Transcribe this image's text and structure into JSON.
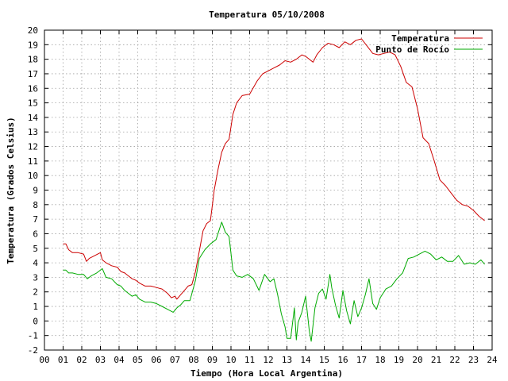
{
  "chart_data": {
    "type": "line",
    "title": "Temperatura 05/10/2008",
    "xlabel": "Tiempo (Hora Local Argentina)",
    "ylabel": "Temperatura (Grados Celsius)",
    "xlim": [
      0,
      24
    ],
    "ylim": [
      -2,
      20
    ],
    "x_ticks": [
      "00",
      "01",
      "02",
      "03",
      "04",
      "05",
      "06",
      "07",
      "08",
      "09",
      "10",
      "11",
      "12",
      "13",
      "14",
      "15",
      "16",
      "17",
      "18",
      "19",
      "20",
      "21",
      "22",
      "23",
      "24"
    ],
    "y_ticks": [
      "-2",
      "-1",
      "0",
      "1",
      "2",
      "3",
      "4",
      "5",
      "6",
      "7",
      "8",
      "9",
      "10",
      "11",
      "12",
      "13",
      "14",
      "15",
      "16",
      "17",
      "18",
      "19",
      "20"
    ],
    "grid": true,
    "legend_position": "top-right",
    "series": [
      {
        "name": "Temperatura",
        "color": "#cc0000",
        "x": [
          1.0,
          1.15,
          1.3,
          1.5,
          1.8,
          2.1,
          2.25,
          2.4,
          2.7,
          3.0,
          3.1,
          3.3,
          3.6,
          3.9,
          4.1,
          4.3,
          4.5,
          4.7,
          4.9,
          5.1,
          5.4,
          5.7,
          6.0,
          6.3,
          6.6,
          6.8,
          7.0,
          7.1,
          7.3,
          7.5,
          7.7,
          7.9,
          8.1,
          8.3,
          8.5,
          8.7,
          8.9,
          9.1,
          9.3,
          9.5,
          9.7,
          9.9,
          10.1,
          10.3,
          10.6,
          11.0,
          11.4,
          11.7,
          12.0,
          12.3,
          12.6,
          12.9,
          13.2,
          13.5,
          13.8,
          14.0,
          14.2,
          14.4,
          14.6,
          14.9,
          15.2,
          15.5,
          15.8,
          16.1,
          16.4,
          16.7,
          17.0,
          17.3,
          17.6,
          17.9,
          18.2,
          18.5,
          18.8,
          19.1,
          19.4,
          19.7,
          20.0,
          20.3,
          20.6,
          20.9,
          21.2,
          21.5,
          21.8,
          22.1,
          22.4,
          22.7,
          23.0,
          23.3,
          23.6
        ],
        "values": [
          5.3,
          5.3,
          4.9,
          4.7,
          4.7,
          4.6,
          4.1,
          4.3,
          4.5,
          4.7,
          4.2,
          4.0,
          3.8,
          3.7,
          3.4,
          3.3,
          3.1,
          2.9,
          2.8,
          2.6,
          2.4,
          2.4,
          2.3,
          2.2,
          1.9,
          1.6,
          1.7,
          1.5,
          1.8,
          2.1,
          2.4,
          2.5,
          3.4,
          4.8,
          6.2,
          6.7,
          6.9,
          9.0,
          10.4,
          11.6,
          12.2,
          12.5,
          14.2,
          15.0,
          15.5,
          15.6,
          16.5,
          17.0,
          17.2,
          17.4,
          17.6,
          17.9,
          17.8,
          18.0,
          18.3,
          18.2,
          18.0,
          17.8,
          18.3,
          18.8,
          19.1,
          19.0,
          18.8,
          19.2,
          19.0,
          19.3,
          19.4,
          18.9,
          18.4,
          18.3,
          18.4,
          18.5,
          18.3,
          17.5,
          16.4,
          16.1,
          14.6,
          12.6,
          12.2,
          11.0,
          9.7,
          9.3,
          8.8,
          8.3,
          8.0,
          7.9,
          7.6,
          7.2,
          6.9
        ]
      },
      {
        "name": "Punto de Rocío",
        "color": "#00aa00",
        "x": [
          1.0,
          1.15,
          1.3,
          1.5,
          1.8,
          2.1,
          2.3,
          2.5,
          2.8,
          3.1,
          3.3,
          3.6,
          3.9,
          4.1,
          4.3,
          4.5,
          4.7,
          4.9,
          5.1,
          5.4,
          5.7,
          6.0,
          6.3,
          6.6,
          6.9,
          7.1,
          7.3,
          7.5,
          7.8,
          8.1,
          8.3,
          8.6,
          8.9,
          9.2,
          9.5,
          9.7,
          9.9,
          10.1,
          10.3,
          10.6,
          10.9,
          11.2,
          11.5,
          11.8,
          12.1,
          12.3,
          12.5,
          12.7,
          12.9,
          13.0,
          13.2,
          13.4,
          13.5,
          13.6,
          13.8,
          14.0,
          14.2,
          14.3,
          14.5,
          14.7,
          14.9,
          15.1,
          15.3,
          15.4,
          15.6,
          15.8,
          16.0,
          16.2,
          16.4,
          16.6,
          16.8,
          17.0,
          17.2,
          17.4,
          17.6,
          17.8,
          18.0,
          18.3,
          18.6,
          18.9,
          19.2,
          19.5,
          19.8,
          20.1,
          20.4,
          20.7,
          21.0,
          21.3,
          21.6,
          21.9,
          22.2,
          22.5,
          22.8,
          23.1,
          23.4,
          23.6
        ],
        "values": [
          3.5,
          3.5,
          3.3,
          3.3,
          3.2,
          3.2,
          2.9,
          3.1,
          3.3,
          3.6,
          3.0,
          2.9,
          2.5,
          2.4,
          2.1,
          1.9,
          1.7,
          1.8,
          1.5,
          1.3,
          1.3,
          1.2,
          1.0,
          0.8,
          0.6,
          0.9,
          1.1,
          1.4,
          1.4,
          2.8,
          4.3,
          4.9,
          5.3,
          5.6,
          6.8,
          6.1,
          5.8,
          3.5,
          3.1,
          3.0,
          3.2,
          2.9,
          2.1,
          3.2,
          2.7,
          2.9,
          1.8,
          0.5,
          -0.4,
          -1.2,
          -1.2,
          0.9,
          -1.3,
          -0.1,
          0.6,
          1.7,
          -0.7,
          -1.4,
          0.9,
          1.9,
          2.2,
          1.5,
          3.2,
          2.3,
          1.1,
          0.2,
          2.1,
          0.7,
          -0.2,
          1.4,
          0.3,
          0.9,
          1.8,
          2.9,
          1.2,
          0.8,
          1.6,
          2.2,
          2.4,
          2.9,
          3.3,
          4.3,
          4.4,
          4.6,
          4.8,
          4.6,
          4.2,
          4.4,
          4.1,
          4.1,
          4.5,
          3.9,
          4.0,
          3.9,
          4.2,
          3.9
        ]
      }
    ]
  }
}
